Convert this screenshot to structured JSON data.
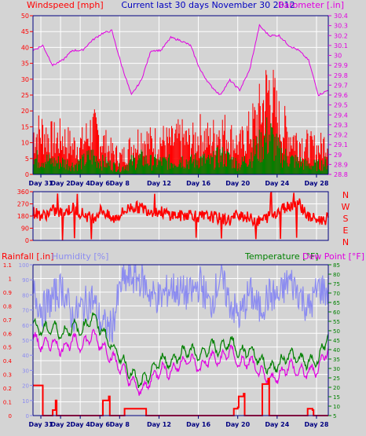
{
  "header": {
    "left_label": "Windspeed [mph]",
    "center_label": "Current last 30 days November 30 2012",
    "right_label": "Barometer [.in]"
  },
  "colors": {
    "frame": "#000080",
    "grid": "#ffffff",
    "wind": "#ff0000",
    "wind_avg": "#008000",
    "wind_mid": "#2050b0",
    "barometer": "#e000e0",
    "direction": "#ff0000",
    "rain": "#ff0000",
    "humidity": "#8c8cf0",
    "temperature": "#008000",
    "dew_point": "#e000e0",
    "tick_x": "#000080"
  },
  "x_days": [
    "Day 31",
    "Day 2",
    "Day 4",
    "Day 6",
    "Day 8",
    "Day 12",
    "Day 16",
    "Day 20",
    "Day 24",
    "Day 28"
  ],
  "chart_data": [
    {
      "type": "bar",
      "title": "Current last 30 days November 30 2012",
      "ylabel": "Windspeed [mph]",
      "ylabel_right": "Barometer [.in]",
      "ylim": [
        0,
        50
      ],
      "ylim_right": [
        28.8,
        30.4
      ],
      "yticks": [
        0,
        5,
        10,
        15,
        20,
        25,
        30,
        35,
        40,
        45,
        50
      ],
      "yticks_right": [
        "28.8",
        "28.9",
        "29",
        "29.1",
        "29.2",
        "29.3",
        "29.4",
        "29.5",
        "29.6",
        "29.7",
        "29.8",
        "29.9",
        "30",
        "30.1",
        "30.2",
        "30.3",
        "30.4"
      ],
      "series": [
        {
          "name": "Windspeed",
          "days": [
            0,
            1,
            2,
            3,
            4,
            5,
            6,
            7,
            8,
            9,
            10,
            11,
            12,
            13,
            14,
            15,
            16,
            17,
            18,
            19,
            20,
            21,
            22,
            23,
            24,
            25,
            26,
            27,
            28,
            29,
            30
          ],
          "values": [
            14,
            15,
            12,
            13,
            10,
            11,
            16,
            12,
            8,
            6,
            10,
            13,
            11,
            12,
            11,
            13,
            11,
            14,
            12,
            16,
            13,
            10,
            15,
            21,
            30,
            18,
            14,
            12,
            10,
            9,
            12
          ]
        },
        {
          "name": "Average",
          "days": [
            0,
            1,
            2,
            3,
            4,
            5,
            6,
            7,
            8,
            9,
            10,
            11,
            12,
            13,
            14,
            15,
            16,
            17,
            18,
            19,
            20,
            21,
            22,
            23,
            24,
            25,
            26,
            27,
            28,
            29,
            30
          ],
          "values": [
            5,
            5,
            4,
            4,
            3,
            4,
            6,
            4,
            3,
            2,
            4,
            5,
            4,
            4,
            4,
            5,
            4,
            5,
            4,
            6,
            5,
            3,
            6,
            9,
            13,
            7,
            5,
            4,
            3,
            3,
            4
          ]
        },
        {
          "name": "Barometer",
          "axis": "right",
          "days": [
            0,
            1,
            2,
            3,
            4,
            5,
            6,
            7,
            8,
            9,
            10,
            11,
            12,
            13,
            14,
            15,
            16,
            17,
            18,
            19,
            20,
            21,
            22,
            23,
            24,
            25,
            26,
            27,
            28,
            29,
            30
          ],
          "values": [
            30.05,
            30.1,
            29.9,
            29.95,
            30.05,
            30.05,
            30.15,
            30.22,
            30.25,
            29.9,
            29.6,
            29.75,
            30.05,
            30.05,
            30.18,
            30.15,
            30.1,
            29.85,
            29.7,
            29.6,
            29.75,
            29.65,
            29.85,
            30.3,
            30.2,
            30.2,
            30.1,
            30.05,
            29.95,
            29.6,
            29.65
          ]
        }
      ]
    },
    {
      "type": "scatter",
      "ylim": [
        0,
        360
      ],
      "yticks": [
        0,
        90,
        180,
        270,
        360
      ],
      "compass": [
        "N",
        "W",
        "S",
        "E",
        "N"
      ],
      "series": [
        {
          "name": "Wind direction",
          "days": [
            0,
            1,
            2,
            3,
            4,
            5,
            6,
            7,
            8,
            9,
            10,
            11,
            12,
            13,
            14,
            15,
            16,
            17,
            18,
            19,
            20,
            21,
            22,
            23,
            24,
            25,
            26,
            27,
            28,
            29,
            30
          ],
          "values": [
            210,
            180,
            220,
            200,
            240,
            200,
            160,
            230,
            150,
            200,
            250,
            240,
            220,
            210,
            190,
            180,
            200,
            170,
            180,
            160,
            150,
            200,
            160,
            140,
            180,
            220,
            260,
            280,
            170,
            150,
            160
          ]
        }
      ]
    },
    {
      "type": "line",
      "ylabel_left": "Rainfall [.in]",
      "ylabel_left2": "Humidity [%]",
      "ylabel_right": "Temperature [°F]",
      "ylabel_right2": "Dew Point [°F]",
      "ylim_rain": [
        0,
        1.1
      ],
      "yticks_rain": [
        "0",
        "0.1",
        "0.2",
        "0.3",
        "0.4",
        "0.5",
        "0.6",
        "0.7",
        "0.8",
        "0.9",
        "1",
        "1.1"
      ],
      "ylim_humidity": [
        0,
        100
      ],
      "yticks_humidity": [
        "0",
        "10",
        "20",
        "30",
        "40",
        "50",
        "60",
        "70",
        "80",
        "90",
        "100"
      ],
      "ylim_temp": [
        5,
        85
      ],
      "yticks_temp": [
        "5",
        "10",
        "15",
        "20",
        "25",
        "30",
        "35",
        "40",
        "45",
        "50",
        "55",
        "60",
        "65",
        "70",
        "75",
        "80",
        "85"
      ],
      "series": [
        {
          "name": "Rainfall",
          "axis": "rain",
          "days": [
            0,
            0.9,
            1,
            1.9,
            2,
            2.3,
            2.4,
            7,
            7.1,
            7.7,
            7.8,
            9.2,
            9.3,
            11.4,
            11.5,
            20.3,
            20.4,
            20.8,
            20.9,
            21.4,
            21.5,
            23.2,
            23.3,
            23.9,
            24,
            27.8,
            27.9,
            28.4,
            28.5
          ],
          "values": [
            0.22,
            0.22,
            0,
            0,
            0.04,
            0.11,
            0,
            0,
            0.11,
            0.14,
            0,
            0,
            0.05,
            0.05,
            0,
            0,
            0.05,
            0.06,
            0.14,
            0.16,
            0,
            0,
            0.23,
            0.27,
            0,
            0,
            0.05,
            0.04,
            0
          ]
        },
        {
          "name": "Humidity",
          "axis": "humidity",
          "days": [
            0,
            1,
            2,
            3,
            4,
            5,
            6,
            7,
            8,
            9,
            10,
            11,
            12,
            13,
            14,
            15,
            16,
            17,
            18,
            19,
            20,
            21,
            22,
            23,
            24,
            25,
            26,
            27,
            28,
            29,
            30
          ],
          "values": [
            82,
            70,
            78,
            85,
            65,
            72,
            78,
            60,
            58,
            88,
            92,
            90,
            80,
            78,
            85,
            82,
            80,
            88,
            72,
            92,
            75,
            65,
            82,
            70,
            80,
            78,
            90,
            82,
            70,
            85,
            82
          ]
        },
        {
          "name": "Temperature",
          "axis": "temp",
          "days": [
            0,
            1,
            2,
            3,
            4,
            5,
            6,
            7,
            8,
            9,
            10,
            11,
            12,
            13,
            14,
            15,
            16,
            17,
            18,
            19,
            20,
            21,
            22,
            23,
            24,
            25,
            26,
            27,
            28,
            29,
            30
          ],
          "values": [
            53,
            50,
            52,
            48,
            52,
            50,
            58,
            50,
            42,
            35,
            27,
            22,
            28,
            35,
            33,
            38,
            40,
            36,
            42,
            40,
            45,
            38,
            40,
            35,
            30,
            32,
            38,
            35,
            33,
            35,
            48
          ]
        },
        {
          "name": "Dew Point",
          "axis": "temp",
          "days": [
            0,
            1,
            2,
            3,
            4,
            5,
            6,
            7,
            8,
            9,
            10,
            11,
            12,
            13,
            14,
            15,
            16,
            17,
            18,
            19,
            20,
            21,
            22,
            23,
            24,
            25,
            26,
            27,
            28,
            29,
            30
          ],
          "values": [
            46,
            42,
            44,
            40,
            45,
            42,
            48,
            42,
            36,
            30,
            23,
            18,
            24,
            30,
            28,
            33,
            35,
            30,
            36,
            34,
            40,
            32,
            34,
            28,
            24,
            26,
            32,
            28,
            28,
            30,
            42
          ]
        }
      ]
    }
  ]
}
